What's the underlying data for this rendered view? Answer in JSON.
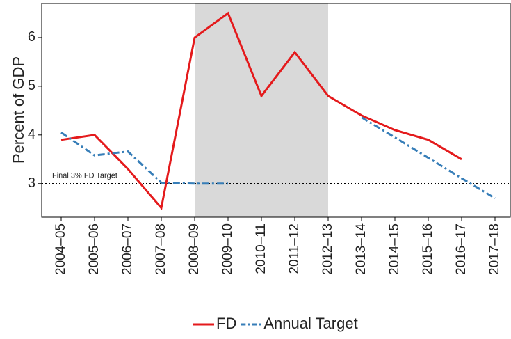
{
  "chart_data": {
    "type": "line",
    "y_label": "Percent of GDP",
    "categories": [
      "2004–05",
      "2005–06",
      "2006–07",
      "2007–08",
      "2008–09",
      "2009–10",
      "2010–11",
      "2011–12",
      "2012–13",
      "2013–14",
      "2014–15",
      "2015–16",
      "2016–17",
      "2017–18"
    ],
    "series": [
      {
        "name": "FD",
        "color": "#e41a1c",
        "dash": "solid",
        "values": [
          3.9,
          4.0,
          3.3,
          2.5,
          6.0,
          6.5,
          4.8,
          5.7,
          4.8,
          4.4,
          4.1,
          3.9,
          3.5,
          null
        ]
      },
      {
        "name": "Annual Target",
        "color": "#377eb8",
        "dash": "dashdot",
        "values": [
          4.05,
          3.58,
          3.66,
          3.02,
          3.0,
          3.0,
          null,
          null,
          null,
          4.36,
          3.95,
          3.53,
          3.11,
          2.7
        ]
      }
    ],
    "shaded": {
      "from": "2008–09",
      "to": "2012–13",
      "color": "#d9d9d9"
    },
    "reference_line": {
      "value": 3,
      "label": "Final 3% FD Target"
    },
    "ylim": [
      2.31,
      6.7
    ],
    "yticks": [
      3,
      4,
      5,
      6
    ],
    "grid": false,
    "legend": "bottom"
  }
}
